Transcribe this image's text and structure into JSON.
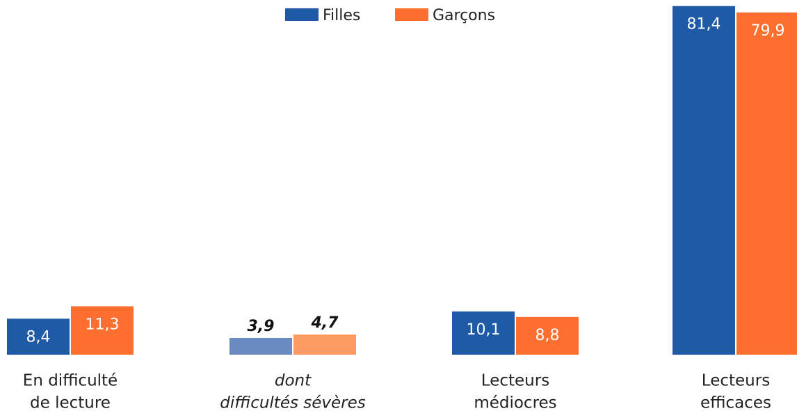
{
  "chart_data": {
    "type": "bar",
    "categories": [
      [
        "En difficulté",
        "de lecture"
      ],
      [
        "dont",
        "difficultés sévères"
      ],
      [
        "Lecteurs",
        "médiocres"
      ],
      [
        "Lecteurs",
        "efficaces"
      ]
    ],
    "subcategory": [
      false,
      true,
      false,
      false
    ],
    "series": [
      {
        "name": "Filles",
        "color": "#1f5aa6",
        "sub_color": "#6a8bc1",
        "values": [
          8.4,
          3.9,
          10.1,
          81.4
        ],
        "value_labels": [
          "8,4",
          "3,9",
          "10,1",
          "81,4"
        ]
      },
      {
        "name": "Garçons",
        "color": "#fd6f2f",
        "sub_color": "#fd9b62",
        "values": [
          11.3,
          4.7,
          8.8,
          79.9
        ],
        "value_labels": [
          "11,3",
          "4,7",
          "8,8",
          "79,9"
        ]
      }
    ],
    "ylim": [
      0,
      82
    ]
  }
}
